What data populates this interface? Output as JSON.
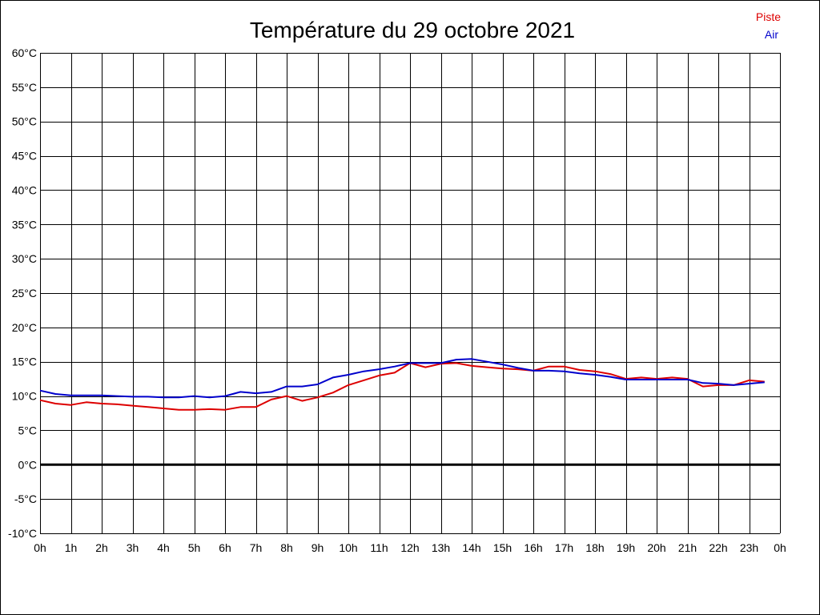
{
  "chart_data": {
    "type": "line",
    "title": "Température du 29 octobre 2021",
    "xlabel": "",
    "ylabel": "",
    "x_range": [
      0,
      24
    ],
    "x_ticks": [
      "0h",
      "1h",
      "2h",
      "3h",
      "4h",
      "5h",
      "6h",
      "7h",
      "8h",
      "9h",
      "10h",
      "11h",
      "12h",
      "13h",
      "14h",
      "15h",
      "16h",
      "17h",
      "18h",
      "19h",
      "20h",
      "21h",
      "22h",
      "23h",
      "0h"
    ],
    "y_range": [
      -10,
      60
    ],
    "y_ticks": [
      "-10°C",
      "-5°C",
      "0°C",
      "5°C",
      "10°C",
      "15°C",
      "20°C",
      "25°C",
      "30°C",
      "35°C",
      "40°C",
      "45°C",
      "50°C",
      "55°C",
      "60°C"
    ],
    "grid": true,
    "legend_position": "top-right",
    "series": [
      {
        "name": "Piste",
        "color": "#dd0000",
        "x": [
          0,
          0.5,
          1,
          1.5,
          2,
          2.5,
          3,
          3.5,
          4,
          4.5,
          5,
          5.5,
          6,
          6.5,
          7,
          7.5,
          8,
          8.5,
          9,
          9.5,
          10,
          10.5,
          11,
          11.5,
          12,
          12.5,
          13,
          13.5,
          14,
          14.5,
          15,
          15.5,
          16,
          16.5,
          17,
          17.5,
          18,
          18.5,
          19,
          19.5,
          20,
          20.5,
          21,
          21.5,
          22,
          22.5,
          23,
          23.5
        ],
        "y": [
          9.4,
          8.9,
          8.7,
          9.1,
          8.9,
          8.8,
          8.6,
          8.4,
          8.2,
          8.0,
          8.0,
          8.1,
          8.0,
          8.4,
          8.4,
          9.5,
          10.0,
          9.3,
          9.8,
          10.5,
          11.6,
          12.3,
          13.0,
          13.4,
          14.8,
          14.2,
          14.7,
          14.8,
          14.4,
          14.2,
          14.0,
          13.9,
          13.7,
          14.3,
          14.3,
          13.8,
          13.6,
          13.2,
          12.5,
          12.7,
          12.5,
          12.7,
          12.5,
          11.4,
          11.6,
          11.6,
          12.3,
          12.1
        ]
      },
      {
        "name": "Air",
        "color": "#0000cc",
        "x": [
          0,
          0.5,
          1,
          1.5,
          2,
          2.5,
          3,
          3.5,
          4,
          4.5,
          5,
          5.5,
          6,
          6.5,
          7,
          7.5,
          8,
          8.5,
          9,
          9.5,
          10,
          10.5,
          11,
          11.5,
          12,
          12.5,
          13,
          13.5,
          14,
          14.5,
          15,
          15.5,
          16,
          16.5,
          17,
          17.5,
          18,
          18.5,
          19,
          19.5,
          20,
          20.5,
          21,
          21.5,
          22,
          22.5,
          23,
          23.5
        ],
        "y": [
          10.8,
          10.3,
          10.1,
          10.1,
          10.1,
          10.0,
          9.9,
          9.9,
          9.8,
          9.8,
          10.0,
          9.8,
          10.0,
          10.6,
          10.4,
          10.6,
          11.4,
          11.4,
          11.7,
          12.7,
          13.1,
          13.6,
          13.9,
          14.3,
          14.8,
          14.8,
          14.8,
          15.3,
          15.4,
          15.0,
          14.6,
          14.1,
          13.7,
          13.7,
          13.6,
          13.3,
          13.1,
          12.8,
          12.4,
          12.4,
          12.4,
          12.4,
          12.4,
          11.9,
          11.8,
          11.6,
          11.8,
          12.0
        ]
      }
    ]
  }
}
